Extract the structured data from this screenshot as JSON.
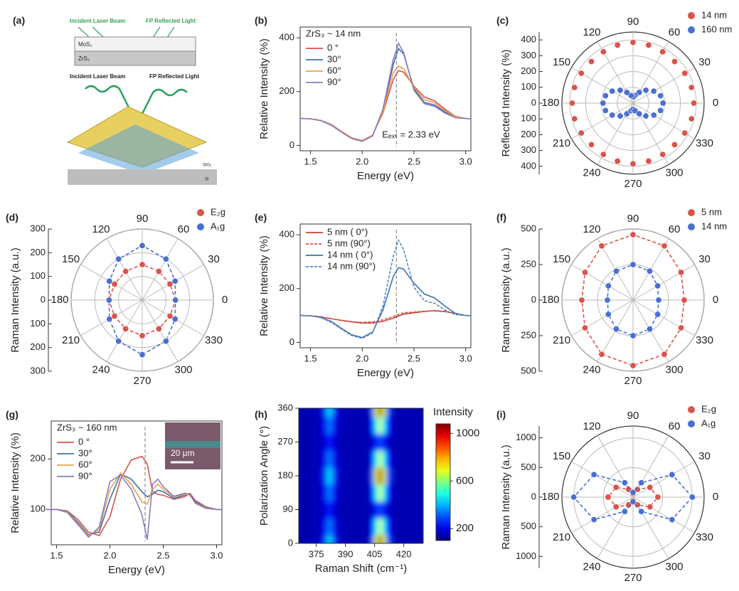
{
  "diagram_a": {
    "label": "(a)",
    "top_labels": [
      "Incident Laser Beam",
      "FP Reflected Light"
    ],
    "layers": [
      "MoS₂",
      "ZrS₃"
    ],
    "bottom_labels": [
      "Incident Laser Beam",
      "FP Reflected Light"
    ],
    "substrate": [
      "SiO₂",
      "Si"
    ]
  },
  "chart_data": [
    {
      "type": "line",
      "label": "(b)",
      "annotation": "ZrS₃ ~ 14 nm",
      "vline_label": "Eₑₓₜ = 2.33 eV",
      "vline": 2.33,
      "xlabel": "Energy (eV)",
      "ylabel": "Relative Intensity (%)",
      "x": [
        1.4,
        1.5,
        1.6,
        1.7,
        1.8,
        1.9,
        2.0,
        2.1,
        2.2,
        2.3,
        2.35,
        2.4,
        2.5,
        2.6,
        2.7,
        2.8,
        2.9,
        3.0,
        3.05
      ],
      "series": [
        {
          "name": "0 °",
          "color": "#d9544d",
          "values": [
            100,
            99,
            93,
            78,
            52,
            28,
            18,
            38,
            120,
            245,
            278,
            272,
            220,
            180,
            165,
            135,
            108,
            100,
            99
          ]
        },
        {
          "name": "30°",
          "color": "#3f72aa",
          "values": [
            100,
            99,
            92,
            76,
            50,
            26,
            16,
            36,
            130,
            300,
            360,
            340,
            210,
            160,
            150,
            125,
            104,
            100,
            99
          ]
        },
        {
          "name": "60°",
          "color": "#e9a24c",
          "values": [
            100,
            99,
            93,
            77,
            51,
            27,
            17,
            37,
            125,
            270,
            295,
            285,
            215,
            170,
            158,
            130,
            106,
            100,
            99
          ]
        },
        {
          "name": "90°",
          "color": "#8c7bbf",
          "values": [
            100,
            99,
            92,
            75,
            49,
            25,
            15,
            35,
            135,
            320,
            380,
            345,
            205,
            155,
            145,
            120,
            103,
            100,
            99
          ]
        }
      ],
      "xlim": [
        1.4,
        3.05
      ],
      "xticks": [
        1.5,
        {
          "value": 2,
          "label": "2.0"
        },
        2.5,
        {
          "value": 3,
          "label": "3.0"
        }
      ],
      "ylim": [
        -20,
        440
      ],
      "yticks": [
        0,
        200,
        400
      ]
    },
    {
      "type": "polar",
      "label": "(c)",
      "ylabel": "Reflected Intensity (%)",
      "theta": [
        0,
        15,
        30,
        45,
        60,
        75,
        90,
        105,
        120,
        135,
        150,
        165,
        180,
        195,
        210,
        225,
        240,
        255,
        270,
        285,
        300,
        315,
        330,
        345
      ],
      "series": [
        {
          "name": "14 nm",
          "color": "#d9544d",
          "values": [
            385,
            383,
            378,
            372,
            375,
            380,
            384,
            380,
            375,
            372,
            378,
            383,
            385,
            383,
            378,
            372,
            375,
            380,
            384,
            380,
            375,
            372,
            378,
            383
          ]
        },
        {
          "name": "160 nm",
          "color": "#4a6fd0",
          "values": [
            190,
            180,
            152,
            115,
            78,
            50,
            40,
            50,
            78,
            115,
            152,
            180,
            190,
            180,
            152,
            115,
            78,
            50,
            40,
            50,
            78,
            115,
            152,
            180
          ]
        }
      ],
      "rlim": [
        0,
        450
      ],
      "rticks": [
        0,
        100,
        200,
        300,
        400
      ],
      "thetaticks": [
        0,
        30,
        60,
        90,
        120,
        150,
        180,
        210,
        240,
        270,
        300,
        330
      ]
    },
    {
      "type": "polar",
      "label": "(d)",
      "ylabel": "Raman Intensity (a.u.)",
      "fit": true,
      "theta": [
        0,
        30,
        60,
        90,
        120,
        150,
        180,
        210,
        240,
        270,
        300,
        330
      ],
      "series": [
        {
          "name": "E₂g",
          "color": "#d9544d",
          "values": [
            140,
            135,
            140,
            150,
            140,
            135,
            140,
            135,
            140,
            150,
            140,
            135
          ]
        },
        {
          "name": "A₁g",
          "color": "#4a6fd0",
          "values": [
            140,
            160,
            200,
            230,
            200,
            160,
            140,
            160,
            200,
            230,
            200,
            160
          ]
        }
      ],
      "rlim": [
        0,
        300
      ],
      "rticks": [
        0,
        100,
        200,
        300
      ],
      "thetaticks": [
        0,
        30,
        60,
        90,
        120,
        150,
        180,
        210,
        240,
        270,
        300,
        330
      ]
    },
    {
      "type": "line",
      "label": "(e)",
      "vline": 2.33,
      "xlabel": "Energy (eV)",
      "ylabel": "Relative Intensity (%)",
      "x": [
        1.4,
        1.5,
        1.6,
        1.7,
        1.8,
        1.9,
        2.0,
        2.1,
        2.2,
        2.3,
        2.35,
        2.4,
        2.5,
        2.6,
        2.7,
        2.8,
        2.9,
        3.0,
        3.05
      ],
      "series": [
        {
          "name": "5 nm  ( 0°)",
          "color": "#c9413b",
          "dash": false,
          "values": [
            100,
            99,
            95,
            88,
            82,
            76,
            72,
            72,
            78,
            90,
            98,
            105,
            110,
            115,
            118,
            115,
            108,
            100,
            99
          ]
        },
        {
          "name": "5 nm  (90°)",
          "color": "#d9544d",
          "dash": true,
          "values": [
            100,
            99,
            95,
            88,
            82,
            77,
            74,
            76,
            84,
            96,
            104,
            110,
            113,
            116,
            117,
            114,
            107,
            100,
            99
          ]
        },
        {
          "name": "14 nm  ( 0°)",
          "color": "#3f72aa",
          "dash": false,
          "values": [
            100,
            99,
            93,
            78,
            52,
            28,
            18,
            38,
            120,
            245,
            278,
            272,
            220,
            180,
            165,
            135,
            108,
            100,
            99
          ]
        },
        {
          "name": "14 nm  (90°)",
          "color": "#5a86c2",
          "dash": true,
          "values": [
            100,
            99,
            92,
            75,
            49,
            25,
            15,
            35,
            135,
            320,
            380,
            345,
            205,
            155,
            145,
            120,
            103,
            100,
            99
          ]
        }
      ],
      "xlim": [
        1.4,
        3.05
      ],
      "xticks": [
        1.5,
        {
          "value": 2,
          "label": "2.0"
        },
        2.5,
        {
          "value": 3,
          "label": "3.0"
        }
      ],
      "ylim": [
        -20,
        440
      ],
      "yticks": [
        0,
        200,
        400
      ]
    },
    {
      "type": "polar",
      "label": "(f)",
      "ylabel": "Raman Intensity (a.u.)",
      "fit": true,
      "theta": [
        0,
        30,
        60,
        90,
        120,
        150,
        180,
        210,
        240,
        270,
        300,
        330
      ],
      "series": [
        {
          "name": "5 nm",
          "color": "#d9544d",
          "values": [
            360,
            390,
            440,
            460,
            440,
            390,
            360,
            390,
            440,
            460,
            440,
            390
          ]
        },
        {
          "name": "14 nm",
          "color": "#4a6fd0",
          "values": [
            180,
            200,
            235,
            250,
            235,
            200,
            180,
            200,
            235,
            250,
            235,
            200
          ]
        }
      ],
      "rlim": [
        0,
        500
      ],
      "rticks": [
        0,
        250,
        500
      ],
      "thetaticks": [
        0,
        30,
        60,
        90,
        120,
        150,
        180,
        210,
        240,
        270,
        300,
        330
      ]
    },
    {
      "type": "line",
      "label": "(g)",
      "annotation": "ZrS₃ ~ 160 nm",
      "scale_bar": "20 μm",
      "vline": 2.33,
      "xlabel": "Energy (eV)",
      "ylabel": "Relative Intensity (%)",
      "x": [
        1.4,
        1.5,
        1.6,
        1.7,
        1.8,
        1.9,
        2.0,
        2.1,
        2.2,
        2.3,
        2.35,
        2.4,
        2.45,
        2.5,
        2.6,
        2.7,
        2.75,
        2.8,
        2.9,
        3.0,
        3.05
      ],
      "series": [
        {
          "name": "0 °",
          "color": "#d9544d",
          "values": [
            100,
            100,
            97,
            80,
            55,
            48,
            85,
            160,
            198,
            205,
            190,
            135,
            130,
            128,
            120,
            125,
            132,
            118,
            105,
            100,
            100
          ]
        },
        {
          "name": "30°",
          "color": "#3f72aa",
          "values": [
            100,
            100,
            96,
            75,
            50,
            55,
            120,
            170,
            160,
            135,
            125,
            130,
            138,
            135,
            122,
            128,
            130,
            115,
            104,
            100,
            100
          ]
        },
        {
          "name": "60°",
          "color": "#e9a24c",
          "values": [
            100,
            100,
            95,
            72,
            48,
            60,
            140,
            172,
            150,
            115,
            110,
            140,
            150,
            140,
            125,
            130,
            128,
            113,
            103,
            100,
            100
          ]
        },
        {
          "name": "90°",
          "color": "#8c7bbf",
          "values": [
            100,
            100,
            94,
            70,
            45,
            65,
            155,
            168,
            140,
            90,
            40,
            150,
            160,
            145,
            126,
            132,
            130,
            112,
            102,
            100,
            100
          ]
        }
      ],
      "xlim": [
        1.45,
        3.05
      ],
      "xticks": [
        1.5,
        {
          "value": 2,
          "label": "2.0"
        },
        2.5,
        {
          "value": 3,
          "label": "3.0"
        }
      ],
      "ylim": [
        30,
        275
      ],
      "yticks": [
        100,
        200
      ]
    },
    {
      "type": "heatmap",
      "label": "(h)",
      "xlabel": "Raman Shift (cm⁻¹)",
      "ylabel": "Polarization Angle (°)",
      "colorbar_title": "Intensity",
      "x": [
        366,
        370,
        374,
        378,
        380,
        382,
        384,
        386,
        390,
        394,
        398,
        402,
        404,
        406,
        408,
        410,
        412,
        416,
        420,
        424,
        428
      ],
      "y": [
        0,
        45,
        90,
        135,
        180,
        225,
        270,
        315,
        360
      ],
      "z": [
        [
          150,
          150,
          150,
          180,
          300,
          450,
          300,
          180,
          150,
          150,
          150,
          150,
          285,
          690,
          1050,
          690,
          285,
          150,
          150,
          150,
          150
        ],
        [
          150,
          150,
          150,
          170,
          250,
          350,
          250,
          170,
          150,
          150,
          150,
          150,
          229,
          465,
          675,
          465,
          229,
          150,
          150,
          150,
          150
        ],
        [
          150,
          150,
          150,
          160,
          200,
          250,
          200,
          160,
          150,
          150,
          150,
          150,
          173,
          240,
          300,
          240,
          173,
          150,
          150,
          150,
          150
        ],
        [
          150,
          150,
          150,
          170,
          250,
          350,
          250,
          170,
          150,
          150,
          150,
          150,
          229,
          465,
          675,
          465,
          229,
          150,
          150,
          150,
          150
        ],
        [
          150,
          150,
          150,
          180,
          300,
          450,
          300,
          180,
          150,
          150,
          150,
          150,
          285,
          690,
          1050,
          690,
          285,
          150,
          150,
          150,
          150
        ],
        [
          150,
          150,
          150,
          170,
          250,
          350,
          250,
          170,
          150,
          150,
          150,
          150,
          229,
          465,
          675,
          465,
          229,
          150,
          150,
          150,
          150
        ],
        [
          150,
          150,
          150,
          160,
          200,
          250,
          200,
          160,
          150,
          150,
          150,
          150,
          173,
          240,
          300,
          240,
          173,
          150,
          150,
          150,
          150
        ],
        [
          150,
          150,
          150,
          170,
          250,
          350,
          250,
          170,
          150,
          150,
          150,
          150,
          229,
          465,
          675,
          465,
          229,
          150,
          150,
          150,
          150
        ],
        [
          150,
          150,
          150,
          180,
          300,
          450,
          300,
          180,
          150,
          150,
          150,
          150,
          285,
          690,
          1050,
          690,
          285,
          150,
          150,
          150,
          150
        ]
      ],
      "xlim": [
        366,
        430
      ],
      "xticks": [
        375,
        390,
        405,
        420
      ],
      "ylim": [
        0,
        360
      ],
      "yticks": [
        0,
        90,
        180,
        270,
        360
      ],
      "clim": [
        100,
        1080
      ],
      "cticks": [
        200,
        600,
        1000
      ],
      "colormap": "jet"
    },
    {
      "type": "polar",
      "label": "(i)",
      "ylabel": "Raman Intensity (a.u.)",
      "fit": true,
      "theta": [
        0,
        30,
        60,
        90,
        120,
        150,
        180,
        210,
        240,
        270,
        300,
        330
      ],
      "series": [
        {
          "name": "E₂g",
          "color": "#d9544d",
          "values": [
            420,
            330,
            150,
            60,
            150,
            330,
            420,
            330,
            150,
            60,
            150,
            330
          ]
        },
        {
          "name": "A₁g",
          "color": "#4a6fd0",
          "values": [
            1000,
            760,
            280,
            80,
            280,
            760,
            1000,
            760,
            280,
            80,
            280,
            760
          ]
        }
      ],
      "rlim": [
        0,
        1200
      ],
      "rticks": [
        0,
        500,
        1000
      ],
      "thetaticks": [
        0,
        30,
        60,
        90,
        120,
        150,
        180,
        210,
        240,
        270,
        300,
        330
      ]
    }
  ]
}
